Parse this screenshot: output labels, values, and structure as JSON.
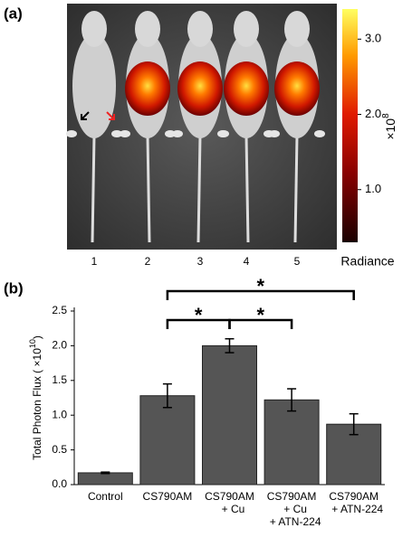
{
  "panel_labels": [
    "(a)",
    "(b)"
  ],
  "panel_a": {
    "mouse_labels": [
      "1",
      "2",
      "3",
      "4",
      "5"
    ],
    "colorbar": {
      "title": "Radiance",
      "multiplier": "×10",
      "exponent": "8",
      "clim": [
        0.3,
        3.4
      ],
      "ticks": [
        {
          "value": 1,
          "label": "1.0"
        },
        {
          "value": 2,
          "label": "2.0"
        },
        {
          "value": 3,
          "label": "3.0"
        }
      ]
    }
  },
  "chart_data": {
    "type": "bar",
    "ylabel": {
      "text": "Total Photon Flux ( ×10",
      "exponent": "10",
      "suffix": ")"
    },
    "categories": [
      [
        "Control"
      ],
      [
        "CS790AM"
      ],
      [
        "CS790AM",
        "+ Cu"
      ],
      [
        "CS790AM",
        "+ Cu",
        "+ ATN-224"
      ],
      [
        "CS790AM",
        "+ ATN-224"
      ]
    ],
    "values": [
      0.17,
      1.28,
      2.0,
      1.22,
      0.87
    ],
    "errors": [
      0.01,
      0.17,
      0.1,
      0.16,
      0.15
    ],
    "color": "#555555",
    "ylim": [
      0,
      2.5
    ],
    "yticks": [
      {
        "value": 0,
        "label": "0.0"
      },
      {
        "value": 0.5,
        "label": "0.5"
      },
      {
        "value": 1,
        "label": "1.0"
      },
      {
        "value": 1.5,
        "label": "1.5"
      },
      {
        "value": 2,
        "label": "2.0"
      },
      {
        "value": 2.5,
        "label": "2.5"
      }
    ],
    "annotations": [
      "*",
      "*",
      "*"
    ]
  }
}
